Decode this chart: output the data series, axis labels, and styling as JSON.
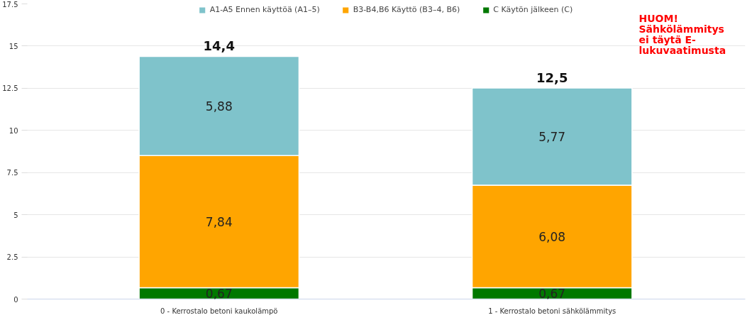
{
  "chart_data": {
    "type": "bar",
    "stacked": true,
    "categories": [
      "0 - Kerrostalo betoni kaukolämpö",
      "1 - Kerrostalo betoni sähkölämmitys"
    ],
    "series": [
      {
        "name": "C Käytön jälkeen (C)",
        "color": "#007800",
        "values": [
          0.67,
          0.67
        ],
        "value_labels": [
          "0,67",
          "0,67"
        ]
      },
      {
        "name": "B3-B4,B6 Käyttö (B3–4, B6)",
        "color": "#ffa500",
        "values": [
          7.84,
          6.08
        ],
        "value_labels": [
          "7,84",
          "6,08"
        ]
      },
      {
        "name": "A1-A5 Ennen käyttöä (A1–5)",
        "color": "#7fc3cb",
        "values": [
          5.88,
          5.77
        ],
        "value_labels": [
          "5,88",
          "5,77"
        ]
      }
    ],
    "totals": [
      "14,4",
      "12,5"
    ],
    "ylim": [
      0,
      17.5
    ],
    "yticks": [
      0,
      2.5,
      5,
      7.5,
      10,
      12.5,
      15,
      17.5
    ],
    "grid": "y",
    "legend": "top",
    "annotations": [
      "HUOM!\nSähkölämmitys\nei täytä E-\nlukuvaatimusta"
    ]
  }
}
